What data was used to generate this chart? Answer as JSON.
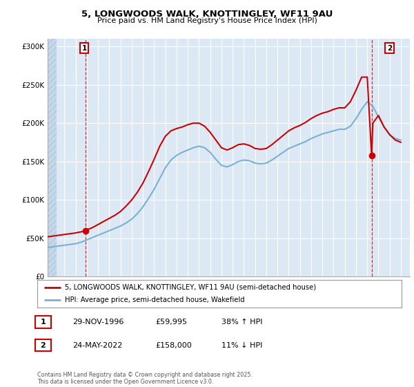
{
  "title": "5, LONGWOODS WALK, KNOTTINGLEY, WF11 9AU",
  "subtitle": "Price paid vs. HM Land Registry's House Price Index (HPI)",
  "ylim": [
    0,
    310000
  ],
  "yticks": [
    0,
    50000,
    100000,
    150000,
    200000,
    250000,
    300000
  ],
  "ytick_labels": [
    "£0",
    "£50K",
    "£100K",
    "£150K",
    "£200K",
    "£250K",
    "£300K"
  ],
  "xlim_start": 1993.5,
  "xlim_end": 2025.8,
  "plot_bg_color": "#dce9f5",
  "grid_color": "#ffffff",
  "red_line_color": "#cc0000",
  "blue_line_color": "#7ab0d4",
  "sale1_year": 1996.91,
  "sale1_price": 59995,
  "sale2_year": 2022.39,
  "sale2_price": 158000,
  "legend_line1": "5, LONGWOODS WALK, KNOTTINGLEY, WF11 9AU (semi-detached house)",
  "legend_line2": "HPI: Average price, semi-detached house, Wakefield",
  "table_row1": [
    "1",
    "29-NOV-1996",
    "£59,995",
    "38% ↑ HPI"
  ],
  "table_row2": [
    "2",
    "24-MAY-2022",
    "£158,000",
    "11% ↓ HPI"
  ],
  "copyright_text": "Contains HM Land Registry data © Crown copyright and database right 2025.\nThis data is licensed under the Open Government Licence v3.0.",
  "hpi_x": [
    1993.5,
    1994.0,
    1994.5,
    1995.0,
    1995.5,
    1996.0,
    1996.5,
    1997.0,
    1997.5,
    1998.0,
    1998.5,
    1999.0,
    1999.5,
    2000.0,
    2000.5,
    2001.0,
    2001.5,
    2002.0,
    2002.5,
    2003.0,
    2003.5,
    2004.0,
    2004.5,
    2005.0,
    2005.5,
    2006.0,
    2006.5,
    2007.0,
    2007.5,
    2008.0,
    2008.5,
    2009.0,
    2009.5,
    2010.0,
    2010.5,
    2011.0,
    2011.5,
    2012.0,
    2012.5,
    2013.0,
    2013.5,
    2014.0,
    2014.5,
    2015.0,
    2015.5,
    2016.0,
    2016.5,
    2017.0,
    2017.5,
    2018.0,
    2018.5,
    2019.0,
    2019.5,
    2020.0,
    2020.5,
    2021.0,
    2021.5,
    2022.0,
    2022.5,
    2023.0,
    2023.5,
    2024.0,
    2024.5,
    2025.0
  ],
  "hpi_y": [
    38000,
    39000,
    40000,
    41000,
    42000,
    43000,
    45000,
    48000,
    51000,
    54000,
    57000,
    60000,
    63000,
    66000,
    70000,
    75000,
    82000,
    91000,
    102000,
    114000,
    128000,
    142000,
    152000,
    158000,
    162000,
    165000,
    168000,
    170000,
    168000,
    162000,
    153000,
    145000,
    143000,
    146000,
    150000,
    152000,
    151000,
    148000,
    147000,
    148000,
    152000,
    157000,
    162000,
    167000,
    170000,
    173000,
    176000,
    180000,
    183000,
    186000,
    188000,
    190000,
    192000,
    192000,
    196000,
    206000,
    218000,
    228000,
    222000,
    208000,
    195000,
    185000,
    180000,
    178000
  ],
  "red_x": [
    1993.5,
    1994.0,
    1994.5,
    1995.0,
    1995.5,
    1996.0,
    1996.5,
    1996.91,
    1997.0,
    1997.5,
    1998.0,
    1998.5,
    1999.0,
    1999.5,
    2000.0,
    2000.5,
    2001.0,
    2001.5,
    2002.0,
    2002.5,
    2003.0,
    2003.5,
    2004.0,
    2004.5,
    2005.0,
    2005.5,
    2006.0,
    2006.5,
    2007.0,
    2007.5,
    2008.0,
    2008.5,
    2009.0,
    2009.5,
    2010.0,
    2010.5,
    2011.0,
    2011.5,
    2012.0,
    2012.5,
    2013.0,
    2013.5,
    2014.0,
    2014.5,
    2015.0,
    2015.5,
    2016.0,
    2016.5,
    2017.0,
    2017.5,
    2018.0,
    2018.5,
    2019.0,
    2019.5,
    2020.0,
    2020.5,
    2021.0,
    2021.5,
    2022.0,
    2022.39,
    2022.5,
    2023.0,
    2023.5,
    2024.0,
    2024.5,
    2025.0
  ],
  "red_y": [
    52000,
    53000,
    54000,
    55000,
    56000,
    57000,
    58500,
    59995,
    61000,
    64000,
    68000,
    72000,
    76000,
    80000,
    85000,
    92000,
    100000,
    110000,
    122000,
    137000,
    153000,
    170000,
    183000,
    190000,
    193000,
    195000,
    198000,
    200000,
    200000,
    196000,
    188000,
    178000,
    168000,
    165000,
    168000,
    172000,
    173000,
    171000,
    167000,
    166000,
    167000,
    172000,
    178000,
    184000,
    190000,
    194000,
    197000,
    201000,
    206000,
    210000,
    213000,
    215000,
    218000,
    220000,
    220000,
    228000,
    243000,
    260000,
    260000,
    158000,
    200000,
    210000,
    195000,
    185000,
    178000,
    175000
  ]
}
